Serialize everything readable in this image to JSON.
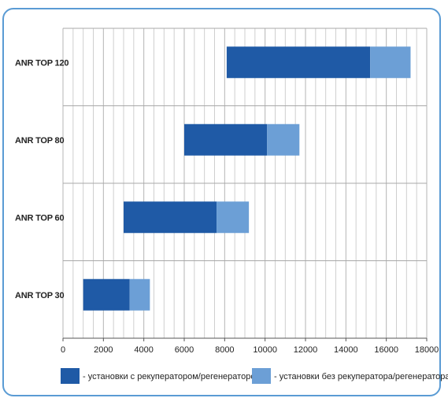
{
  "chart_data": {
    "type": "bar",
    "orientation": "horizontal",
    "stacked": true,
    "categories": [
      "ANR TOP 120",
      "ANR TOP 80",
      "ANR TOP 60",
      "ANR TOP 30"
    ],
    "series": [
      {
        "name": "- установки с рекуператором/регенератором",
        "color": "#1f5aa6",
        "start": [
          8100,
          6000,
          3000,
          1000
        ],
        "values": [
          7100,
          4100,
          4600,
          2300
        ]
      },
      {
        "name": "- установки без рекуператора/регенератора",
        "color": "#6c9fd6",
        "values": [
          2000,
          1600,
          1600,
          1000
        ]
      }
    ],
    "xlim": [
      0,
      18000
    ],
    "xticks": [
      0,
      2000,
      4000,
      6000,
      8000,
      10000,
      12000,
      14000,
      16000,
      18000
    ],
    "minor_step": 500,
    "grid": true,
    "legend": "bottom"
  }
}
